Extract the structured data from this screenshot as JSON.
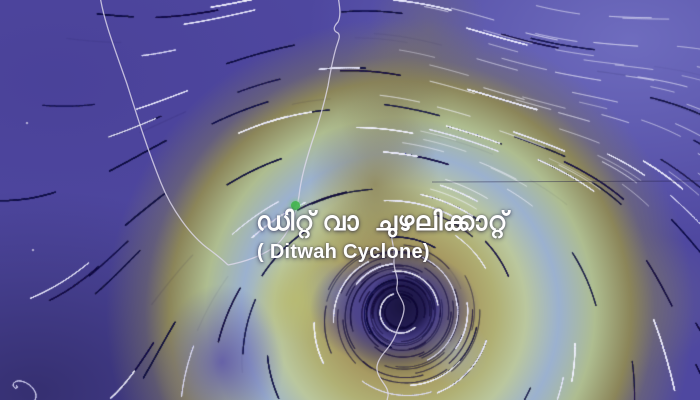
{
  "cyclone": {
    "label_malayalam": "ഡിറ്റ് വാ  ചുഴലിക്കാറ്റ്",
    "label_english": "( Ditwah Cyclone)"
  },
  "icons": {
    "location_marker": "green-dot-marker"
  },
  "colors": {
    "ocean_calm": "#4f48a0",
    "ocean_light": "#706ec0",
    "ocean_deep": "#36306e",
    "storm_olive": "#8b8559",
    "storm_tan": "#a79a62",
    "storm_yellow_green": "#b0b074",
    "storm_pale_green": "#bac79e",
    "storm_blue": "#9bb1cf",
    "cyclone_eye": "#191440",
    "cyclone_inner_purple": "#4a4190",
    "coastline": "#ded9ec",
    "label_text": "#ffffff",
    "marker_green": "#3fb54a"
  }
}
